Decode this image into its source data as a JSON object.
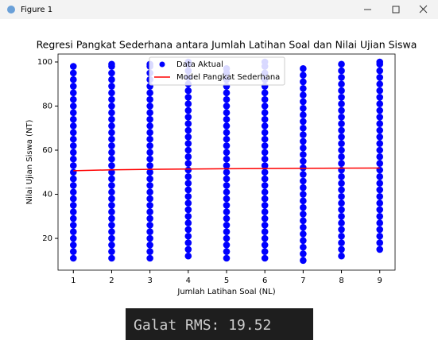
{
  "window": {
    "title": "Figure 1"
  },
  "chart_data": {
    "type": "scatter",
    "title": "Regresi Pangkat Sederhana antara Jumlah Latihan Soal dan Nilai Ujian Siswa",
    "x_label": "Jumlah Latihan Soal (NL)",
    "y_label": "Nilai Ujian Siswa (NT)",
    "xlim": [
      0.6,
      9.4
    ],
    "ylim": [
      5.6,
      103.6
    ],
    "xticks": [
      1,
      2,
      3,
      4,
      5,
      6,
      7,
      8,
      9
    ],
    "yticks": [
      20,
      40,
      60,
      80,
      100
    ],
    "legend": "upper center",
    "series": [
      {
        "name": "Data Aktual",
        "color": "#0000ff",
        "kind": "points",
        "x": [
          1,
          1,
          1,
          1,
          1,
          1,
          1,
          1,
          1,
          1,
          1,
          1,
          1,
          1,
          1,
          1,
          1,
          1,
          1,
          1,
          1,
          1,
          1,
          1,
          1,
          1,
          1,
          1,
          1,
          1,
          2,
          2,
          2,
          2,
          2,
          2,
          2,
          2,
          2,
          2,
          2,
          2,
          2,
          2,
          2,
          2,
          2,
          2,
          2,
          2,
          2,
          2,
          2,
          2,
          2,
          2,
          2,
          2,
          2,
          2,
          2,
          3,
          3,
          3,
          3,
          3,
          3,
          3,
          3,
          3,
          3,
          3,
          3,
          3,
          3,
          3,
          3,
          3,
          3,
          3,
          3,
          3,
          3,
          3,
          3,
          3,
          3,
          3,
          3,
          3,
          3,
          3,
          4,
          4,
          4,
          4,
          4,
          4,
          4,
          4,
          4,
          4,
          4,
          4,
          4,
          4,
          4,
          4,
          4,
          4,
          4,
          4,
          4,
          4,
          4,
          4,
          4,
          4,
          4,
          4,
          4,
          4,
          4,
          5,
          5,
          5,
          5,
          5,
          5,
          5,
          5,
          5,
          5,
          5,
          5,
          5,
          5,
          5,
          5,
          5,
          5,
          5,
          5,
          5,
          5,
          5,
          5,
          5,
          5,
          5,
          5,
          5,
          5,
          6,
          6,
          6,
          6,
          6,
          6,
          6,
          6,
          6,
          6,
          6,
          6,
          6,
          6,
          6,
          6,
          6,
          6,
          6,
          6,
          6,
          6,
          6,
          6,
          6,
          6,
          6,
          6,
          6,
          6,
          6,
          7,
          7,
          7,
          7,
          7,
          7,
          7,
          7,
          7,
          7,
          7,
          7,
          7,
          7,
          7,
          7,
          7,
          7,
          7,
          7,
          7,
          7,
          7,
          7,
          7,
          7,
          7,
          7,
          7,
          7,
          8,
          8,
          8,
          8,
          8,
          8,
          8,
          8,
          8,
          8,
          8,
          8,
          8,
          8,
          8,
          8,
          8,
          8,
          8,
          8,
          8,
          8,
          8,
          8,
          8,
          8,
          8,
          8,
          8,
          8,
          9,
          9,
          9,
          9,
          9,
          9,
          9,
          9,
          9,
          9,
          9,
          9,
          9,
          9,
          9,
          9,
          9,
          9,
          9,
          9,
          9,
          9,
          9,
          9,
          9,
          9,
          9,
          9,
          9,
          9
        ],
        "values": [
          11,
          14,
          17,
          20,
          23,
          26,
          29,
          32,
          35,
          38,
          41,
          44,
          47,
          50,
          53,
          56,
          59,
          62,
          65,
          68,
          71,
          74,
          77,
          80,
          83,
          86,
          89,
          92,
          95,
          98,
          11,
          14,
          17,
          20,
          23,
          26,
          29,
          32,
          35,
          38,
          41,
          44,
          47,
          50,
          53,
          56,
          59,
          62,
          65,
          68,
          71,
          74,
          77,
          80,
          83,
          86,
          89,
          92,
          95,
          98,
          99,
          11,
          14,
          17,
          20,
          23,
          26,
          29,
          32,
          35,
          38,
          41,
          44,
          47,
          50,
          53,
          56,
          59,
          62,
          65,
          68,
          71,
          74,
          77,
          80,
          83,
          86,
          89,
          92,
          95,
          98,
          99,
          12,
          15,
          18,
          21,
          24,
          27,
          30,
          33,
          36,
          39,
          42,
          45,
          48,
          51,
          54,
          57,
          60,
          63,
          66,
          69,
          72,
          75,
          78,
          81,
          84,
          87,
          90,
          93,
          96,
          99,
          100,
          11,
          14,
          17,
          20,
          23,
          26,
          29,
          32,
          35,
          38,
          41,
          44,
          47,
          50,
          53,
          56,
          59,
          62,
          65,
          68,
          71,
          74,
          77,
          80,
          83,
          86,
          89,
          92,
          95,
          97,
          11,
          14,
          17,
          20,
          23,
          26,
          29,
          32,
          35,
          38,
          41,
          44,
          47,
          50,
          53,
          56,
          59,
          62,
          65,
          68,
          71,
          74,
          77,
          80,
          83,
          86,
          89,
          92,
          95,
          98,
          100,
          10,
          13,
          16,
          19,
          22,
          25,
          28,
          31,
          34,
          37,
          40,
          43,
          46,
          49,
          52,
          55,
          58,
          61,
          64,
          67,
          70,
          73,
          76,
          79,
          82,
          85,
          88,
          91,
          94,
          97,
          12,
          15,
          18,
          21,
          24,
          27,
          30,
          33,
          36,
          39,
          42,
          45,
          48,
          51,
          54,
          57,
          60,
          63,
          66,
          69,
          72,
          75,
          78,
          81,
          84,
          87,
          90,
          93,
          96,
          99,
          15,
          18,
          21,
          24,
          27,
          30,
          33,
          36,
          39,
          42,
          45,
          48,
          51,
          54,
          57,
          60,
          63,
          66,
          69,
          72,
          75,
          78,
          81,
          84,
          87,
          90,
          93,
          96,
          99,
          100
        ]
      },
      {
        "name": "Model Pangkat Sederhana",
        "color": "#ff0000",
        "kind": "line",
        "x": [
          1,
          2,
          3,
          4,
          5,
          6,
          7,
          8,
          9
        ],
        "values": [
          50.7,
          51.08,
          51.3,
          51.46,
          51.58,
          51.68,
          51.76,
          51.84,
          51.9
        ]
      }
    ]
  },
  "terminal": {
    "text": "Galat RMS: 19.52"
  }
}
